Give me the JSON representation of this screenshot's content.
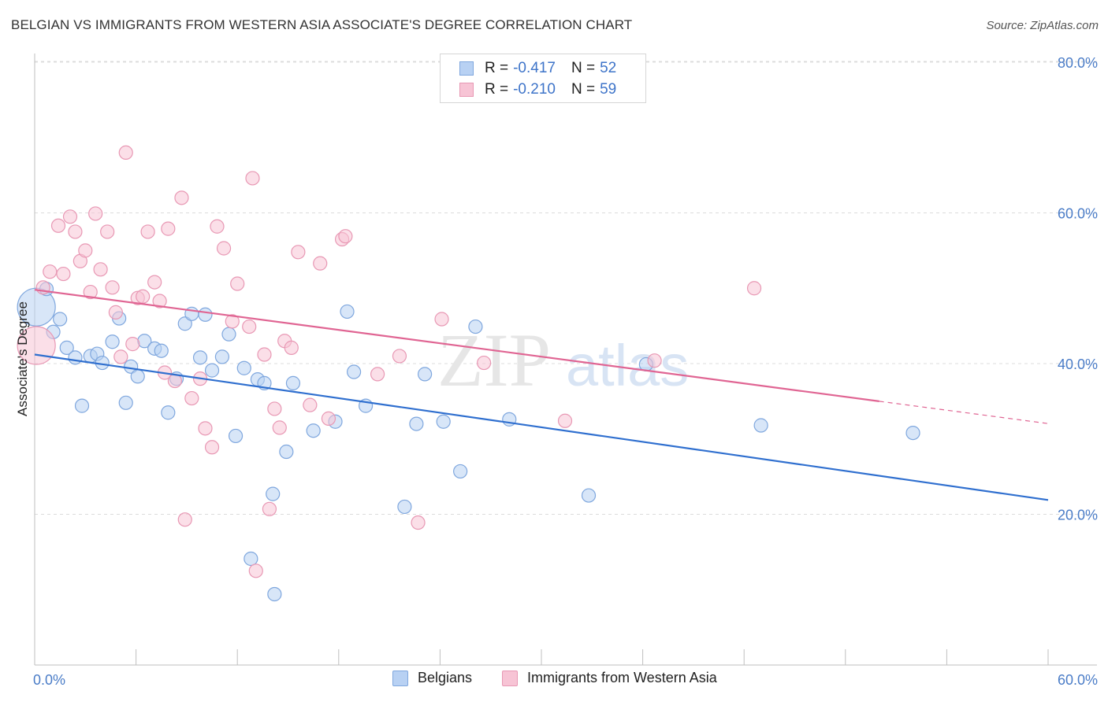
{
  "title": "BELGIAN VS IMMIGRANTS FROM WESTERN ASIA ASSOCIATE'S DEGREE CORRELATION CHART",
  "source": "Source: ZipAtlas.com",
  "watermark": {
    "zip": "ZIP",
    "atlas": "atlas"
  },
  "legend": {
    "rows": [
      {
        "r_label": "R =",
        "r_value": "-0.417",
        "n_label": "N =",
        "n_value": "52"
      },
      {
        "r_label": "R =",
        "r_value": "-0.210",
        "n_label": "N =",
        "n_value": "59"
      }
    ]
  },
  "bottom_legend": [
    "Belgians",
    "Immigrants from Western Asia"
  ],
  "colors": {
    "blue_fill": "#b8d1f3",
    "blue_stroke": "#7fa7de",
    "blue_line": "#2f6fcf",
    "pink_fill": "#f7c4d5",
    "pink_stroke": "#e898b4",
    "pink_line": "#e06593",
    "grid": "#dcdcdc",
    "tick_text": "#4a7cc7"
  },
  "chart_data": {
    "type": "scatter",
    "title": "BELGIAN VS IMMIGRANTS FROM WESTERN ASIA ASSOCIATE'S DEGREE CORRELATION CHART",
    "xlabel": "",
    "ylabel": "Associate's Degree",
    "xlim": [
      0,
      60
    ],
    "ylim": [
      0,
      82
    ],
    "x_tick_labels": [
      "0.0%",
      "60.0%"
    ],
    "y_ticks": [
      20,
      40,
      60,
      80
    ],
    "y_tick_labels": [
      "20.0%",
      "40.0%",
      "60.0%",
      "80.0%"
    ],
    "grid": "horizontal dashed",
    "legend_placement": "top-center and bottom",
    "series": [
      {
        "name": "Belgians",
        "r": -0.417,
        "n": 52,
        "trend": {
          "x": [
            0,
            60
          ],
          "y": [
            41.2,
            21.9
          ]
        },
        "points": [
          {
            "x": 0.1,
            "y": 47.5,
            "big": true
          },
          {
            "x": 0.7,
            "y": 49.9
          },
          {
            "x": 1.1,
            "y": 44.2
          },
          {
            "x": 1.5,
            "y": 45.9
          },
          {
            "x": 1.9,
            "y": 42.1
          },
          {
            "x": 2.4,
            "y": 40.8
          },
          {
            "x": 2.8,
            "y": 34.4
          },
          {
            "x": 3.3,
            "y": 41.0
          },
          {
            "x": 3.7,
            "y": 41.3
          },
          {
            "x": 4.0,
            "y": 40.1
          },
          {
            "x": 4.6,
            "y": 42.9
          },
          {
            "x": 5.0,
            "y": 46.0
          },
          {
            "x": 5.4,
            "y": 34.8
          },
          {
            "x": 5.7,
            "y": 39.6
          },
          {
            "x": 6.1,
            "y": 38.3
          },
          {
            "x": 6.5,
            "y": 43.0
          },
          {
            "x": 7.1,
            "y": 42.0
          },
          {
            "x": 7.5,
            "y": 41.7
          },
          {
            "x": 7.9,
            "y": 33.5
          },
          {
            "x": 8.4,
            "y": 38.0
          },
          {
            "x": 8.9,
            "y": 45.3
          },
          {
            "x": 9.3,
            "y": 46.6
          },
          {
            "x": 9.8,
            "y": 40.8
          },
          {
            "x": 10.1,
            "y": 46.5
          },
          {
            "x": 10.5,
            "y": 39.1
          },
          {
            "x": 11.1,
            "y": 40.9
          },
          {
            "x": 11.5,
            "y": 43.9
          },
          {
            "x": 11.9,
            "y": 30.4
          },
          {
            "x": 12.4,
            "y": 39.4
          },
          {
            "x": 12.8,
            "y": 14.1
          },
          {
            "x": 13.2,
            "y": 37.9
          },
          {
            "x": 13.6,
            "y": 37.4
          },
          {
            "x": 14.1,
            "y": 22.7
          },
          {
            "x": 14.2,
            "y": 9.4
          },
          {
            "x": 14.9,
            "y": 28.3
          },
          {
            "x": 15.3,
            "y": 37.4
          },
          {
            "x": 16.5,
            "y": 31.1
          },
          {
            "x": 17.8,
            "y": 32.3
          },
          {
            "x": 18.5,
            "y": 46.9
          },
          {
            "x": 18.9,
            "y": 38.9
          },
          {
            "x": 19.6,
            "y": 34.4
          },
          {
            "x": 21.9,
            "y": 21.0
          },
          {
            "x": 22.6,
            "y": 32.0
          },
          {
            "x": 23.1,
            "y": 38.6
          },
          {
            "x": 24.2,
            "y": 32.3
          },
          {
            "x": 25.2,
            "y": 25.7
          },
          {
            "x": 26.1,
            "y": 44.9
          },
          {
            "x": 28.1,
            "y": 32.6
          },
          {
            "x": 32.8,
            "y": 22.5
          },
          {
            "x": 36.2,
            "y": 39.9
          },
          {
            "x": 43.0,
            "y": 31.8
          },
          {
            "x": 52.0,
            "y": 30.8
          }
        ]
      },
      {
        "name": "Immigrants from Western Asia",
        "r": -0.21,
        "n": 59,
        "trend": {
          "x": [
            0,
            50
          ],
          "y": [
            49.8,
            35.0
          ]
        },
        "points": [
          {
            "x": 0.1,
            "y": 42.4,
            "big": true
          },
          {
            "x": 0.5,
            "y": 50.1
          },
          {
            "x": 0.9,
            "y": 52.2
          },
          {
            "x": 1.4,
            "y": 58.3
          },
          {
            "x": 1.7,
            "y": 51.9
          },
          {
            "x": 2.1,
            "y": 59.5
          },
          {
            "x": 2.4,
            "y": 57.5
          },
          {
            "x": 2.7,
            "y": 53.6
          },
          {
            "x": 3.0,
            "y": 55.0
          },
          {
            "x": 3.3,
            "y": 49.5
          },
          {
            "x": 3.6,
            "y": 59.9
          },
          {
            "x": 3.9,
            "y": 52.5
          },
          {
            "x": 4.3,
            "y": 57.5
          },
          {
            "x": 4.6,
            "y": 50.1
          },
          {
            "x": 4.8,
            "y": 46.8
          },
          {
            "x": 5.1,
            "y": 40.9
          },
          {
            "x": 5.4,
            "y": 68.0
          },
          {
            "x": 5.8,
            "y": 42.6
          },
          {
            "x": 6.1,
            "y": 48.7
          },
          {
            "x": 6.4,
            "y": 48.9
          },
          {
            "x": 6.7,
            "y": 57.5
          },
          {
            "x": 7.1,
            "y": 50.8
          },
          {
            "x": 7.4,
            "y": 48.3
          },
          {
            "x": 7.7,
            "y": 38.8
          },
          {
            "x": 7.9,
            "y": 57.9
          },
          {
            "x": 8.3,
            "y": 37.7
          },
          {
            "x": 8.7,
            "y": 62.0
          },
          {
            "x": 8.9,
            "y": 19.3
          },
          {
            "x": 9.3,
            "y": 35.4
          },
          {
            "x": 9.8,
            "y": 38.0
          },
          {
            "x": 10.1,
            "y": 31.4
          },
          {
            "x": 10.5,
            "y": 28.9
          },
          {
            "x": 10.8,
            "y": 58.2
          },
          {
            "x": 11.2,
            "y": 55.3
          },
          {
            "x": 11.7,
            "y": 45.6
          },
          {
            "x": 12.0,
            "y": 50.6
          },
          {
            "x": 12.7,
            "y": 44.9
          },
          {
            "x": 12.9,
            "y": 64.6
          },
          {
            "x": 13.1,
            "y": 12.5
          },
          {
            "x": 13.6,
            "y": 41.2
          },
          {
            "x": 13.9,
            "y": 20.7
          },
          {
            "x": 14.2,
            "y": 34.0
          },
          {
            "x": 14.5,
            "y": 31.5
          },
          {
            "x": 14.8,
            "y": 43.0
          },
          {
            "x": 15.2,
            "y": 42.1
          },
          {
            "x": 15.6,
            "y": 54.8
          },
          {
            "x": 16.3,
            "y": 34.5
          },
          {
            "x": 16.9,
            "y": 53.3
          },
          {
            "x": 17.4,
            "y": 32.7
          },
          {
            "x": 18.2,
            "y": 56.5
          },
          {
            "x": 18.4,
            "y": 56.9
          },
          {
            "x": 20.3,
            "y": 38.6
          },
          {
            "x": 21.6,
            "y": 41.0
          },
          {
            "x": 22.7,
            "y": 18.9
          },
          {
            "x": 24.1,
            "y": 45.9
          },
          {
            "x": 26.6,
            "y": 40.1
          },
          {
            "x": 31.4,
            "y": 32.4
          },
          {
            "x": 36.7,
            "y": 40.4
          },
          {
            "x": 42.6,
            "y": 50.0
          }
        ]
      }
    ]
  }
}
